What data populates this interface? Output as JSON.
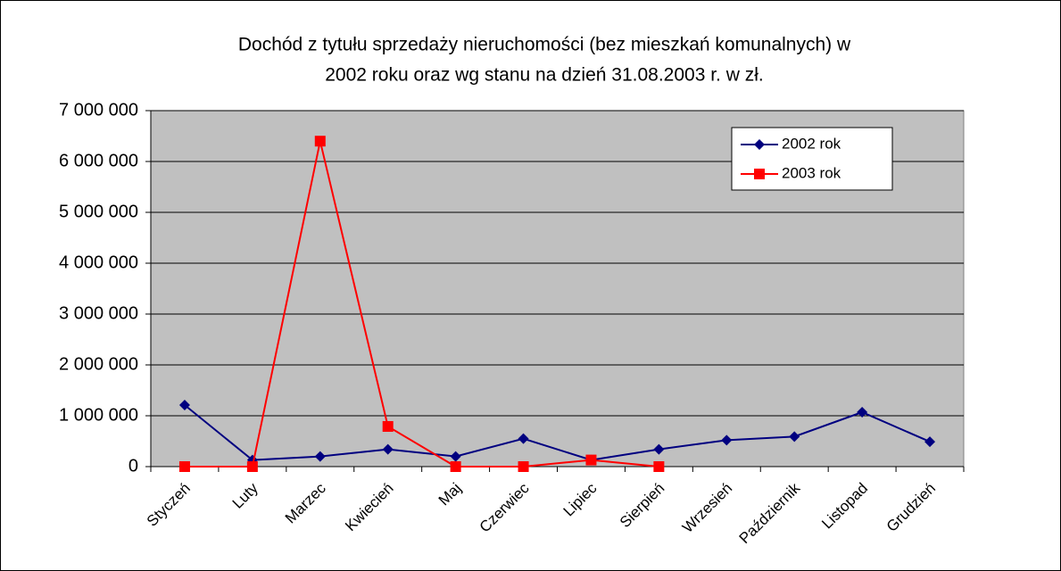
{
  "chart_data": {
    "type": "line",
    "title": [
      "Dochód z tytułu sprzedaży nieruchomości (bez mieszkań komunalnych) w",
      "2002 roku oraz wg stanu na dzień 31.08.2003 r. w zł."
    ],
    "categories": [
      "Styczeń",
      "Luty",
      "Marzec",
      "Kwiecień",
      "Maj",
      "Czerwiec",
      "Lipiec",
      "Sierpień",
      "Wrzesień",
      "Październik",
      "Listopad",
      "Grudzień"
    ],
    "series": [
      {
        "name": "2002 rok",
        "color": "#000080",
        "marker": "diamond",
        "values": [
          1210000,
          130000,
          200000,
          340000,
          200000,
          550000,
          130000,
          340000,
          520000,
          590000,
          1070000,
          490000
        ]
      },
      {
        "name": "2003 rok",
        "color": "#ff0000",
        "marker": "square",
        "values": [
          0,
          0,
          6400000,
          790000,
          0,
          0,
          130000,
          0,
          null,
          null,
          null,
          null
        ]
      }
    ],
    "ylim": [
      0,
      7000000
    ],
    "yticks": [
      0,
      {
        "value": 1000000,
        "label": "1 000 000"
      },
      {
        "value": 2000000,
        "label": "2 000 000"
      },
      {
        "value": 3000000,
        "label": "3 000 000"
      },
      {
        "value": 4000000,
        "label": "4 000 000"
      },
      {
        "value": 5000000,
        "label": "5 000 000"
      },
      {
        "value": 6000000,
        "label": "6 000 000"
      },
      {
        "value": 7000000,
        "label": "7 000 000"
      }
    ],
    "grid": true,
    "legend": "upper right",
    "background": "#c0c0c0"
  }
}
